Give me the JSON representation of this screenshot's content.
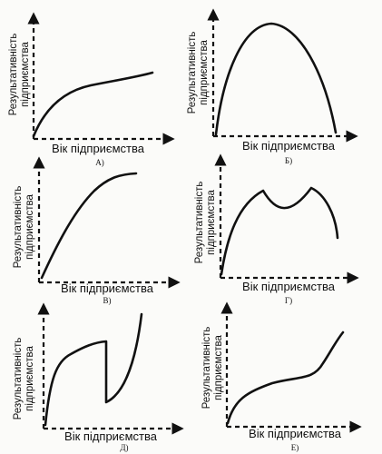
{
  "y_axis_label_line1": "Результативність",
  "y_axis_label_line2": "підприємства",
  "x_axis_label": "Вік підприємства",
  "panels": [
    {
      "id": "A",
      "label": "А)"
    },
    {
      "id": "B",
      "label": "Б)"
    },
    {
      "id": "V",
      "label": "В)"
    },
    {
      "id": "G",
      "label": "Г)"
    },
    {
      "id": "D",
      "label": "Д)"
    },
    {
      "id": "E",
      "label": "Е)"
    }
  ]
}
